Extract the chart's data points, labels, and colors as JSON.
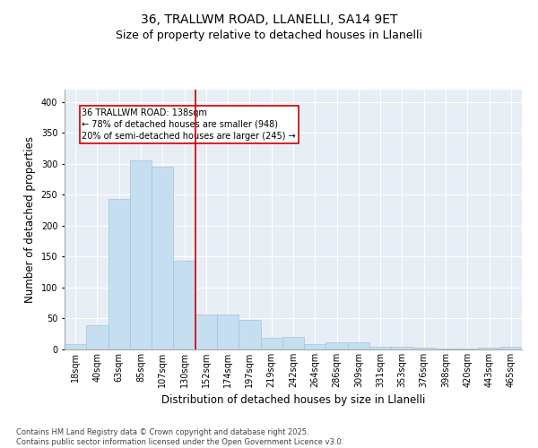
{
  "title_line1": "36, TRALLWM ROAD, LLANELLI, SA14 9ET",
  "title_line2": "Size of property relative to detached houses in Llanelli",
  "xlabel": "Distribution of detached houses by size in Llanelli",
  "ylabel": "Number of detached properties",
  "categories": [
    "18sqm",
    "40sqm",
    "63sqm",
    "85sqm",
    "107sqm",
    "130sqm",
    "152sqm",
    "174sqm",
    "197sqm",
    "219sqm",
    "242sqm",
    "264sqm",
    "286sqm",
    "309sqm",
    "331sqm",
    "353sqm",
    "376sqm",
    "398sqm",
    "420sqm",
    "443sqm",
    "465sqm"
  ],
  "values": [
    8,
    39,
    243,
    306,
    295,
    144,
    57,
    56,
    48,
    19,
    20,
    9,
    11,
    11,
    5,
    4,
    3,
    2,
    1,
    3,
    4
  ],
  "bar_color": "#c5dff0",
  "bar_edge_color": "#a0c4e0",
  "vline_x_idx": 5.5,
  "vline_color": "#cc0000",
  "annotation_text": "36 TRALLWM ROAD: 138sqm\n← 78% of detached houses are smaller (948)\n20% of semi-detached houses are larger (245) →",
  "annotation_box_color": "#cc0000",
  "ylim": [
    0,
    420
  ],
  "yticks": [
    0,
    50,
    100,
    150,
    200,
    250,
    300,
    350,
    400
  ],
  "background_color": "#e8eef5",
  "grid_color": "#ffffff",
  "footer_line1": "Contains HM Land Registry data © Crown copyright and database right 2025.",
  "footer_line2": "Contains public sector information licensed under the Open Government Licence v3.0.",
  "title_fontsize": 10,
  "subtitle_fontsize": 9,
  "tick_fontsize": 7,
  "label_fontsize": 8.5,
  "footer_fontsize": 6,
  "annotation_fontsize": 7
}
